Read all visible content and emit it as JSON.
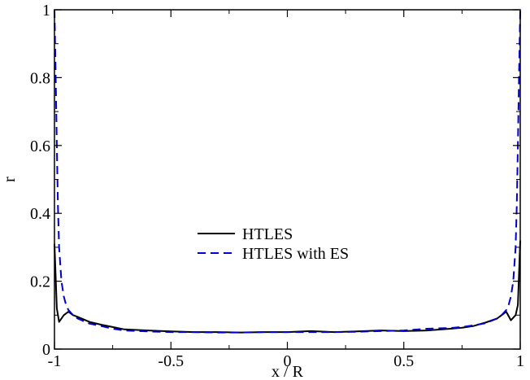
{
  "chart_data": {
    "type": "line",
    "title": "",
    "xlabel": "x / R",
    "ylabel": "r",
    "xlim": [
      -1,
      1
    ],
    "ylim": [
      0,
      1
    ],
    "grid": false,
    "legend_position": "center",
    "x_ticks": [
      {
        "value": -1,
        "label": "-1"
      },
      {
        "value": -0.5,
        "label": "-0.5"
      },
      {
        "value": 0,
        "label": "0"
      },
      {
        "value": 0.5,
        "label": "0.5"
      },
      {
        "value": 1,
        "label": "1"
      }
    ],
    "y_ticks": [
      {
        "value": 0,
        "label": "0"
      },
      {
        "value": 0.2,
        "label": "0.2"
      },
      {
        "value": 0.4,
        "label": "0.4"
      },
      {
        "value": 0.6,
        "label": "0.6"
      },
      {
        "value": 0.8,
        "label": "0.8"
      },
      {
        "value": 1,
        "label": "1"
      }
    ],
    "series": [
      {
        "name": "HTLES",
        "color": "#000000",
        "dash": "solid",
        "x": [
          -1.0,
          -0.99,
          -0.98,
          -0.96,
          -0.94,
          -0.92,
          -0.9,
          -0.85,
          -0.8,
          -0.75,
          -0.7,
          -0.6,
          -0.5,
          -0.4,
          -0.3,
          -0.2,
          -0.1,
          0.0,
          0.1,
          0.2,
          0.3,
          0.4,
          0.5,
          0.6,
          0.7,
          0.75,
          0.8,
          0.85,
          0.9,
          0.92,
          0.94,
          0.96,
          0.98,
          0.99,
          1.0
        ],
        "y": [
          0.31,
          0.12,
          0.08,
          0.1,
          0.11,
          0.1,
          0.095,
          0.08,
          0.072,
          0.065,
          0.058,
          0.055,
          0.052,
          0.05,
          0.05,
          0.049,
          0.05,
          0.05,
          0.053,
          0.05,
          0.052,
          0.055,
          0.053,
          0.055,
          0.06,
          0.063,
          0.068,
          0.078,
          0.09,
          0.1,
          0.11,
          0.085,
          0.1,
          0.13,
          0.32
        ]
      },
      {
        "name": "HTLES with ES",
        "color": "#0000cc",
        "dash": "dashed",
        "x": [
          -1.0,
          -0.995,
          -0.99,
          -0.985,
          -0.98,
          -0.97,
          -0.96,
          -0.95,
          -0.94,
          -0.92,
          -0.9,
          -0.85,
          -0.8,
          -0.75,
          -0.7,
          -0.6,
          -0.5,
          -0.4,
          -0.3,
          -0.2,
          -0.1,
          0.0,
          0.1,
          0.2,
          0.3,
          0.4,
          0.5,
          0.6,
          0.7,
          0.75,
          0.8,
          0.85,
          0.9,
          0.92,
          0.94,
          0.95,
          0.96,
          0.97,
          0.98,
          0.985,
          0.99,
          0.995,
          1.0
        ],
        "y": [
          1.0,
          0.82,
          0.6,
          0.42,
          0.3,
          0.2,
          0.155,
          0.13,
          0.115,
          0.1,
          0.09,
          0.075,
          0.068,
          0.06,
          0.055,
          0.052,
          0.05,
          0.05,
          0.049,
          0.049,
          0.05,
          0.05,
          0.05,
          0.05,
          0.051,
          0.053,
          0.055,
          0.06,
          0.062,
          0.065,
          0.07,
          0.076,
          0.09,
          0.1,
          0.115,
          0.13,
          0.155,
          0.2,
          0.3,
          0.42,
          0.6,
          0.82,
          1.0
        ]
      }
    ]
  }
}
